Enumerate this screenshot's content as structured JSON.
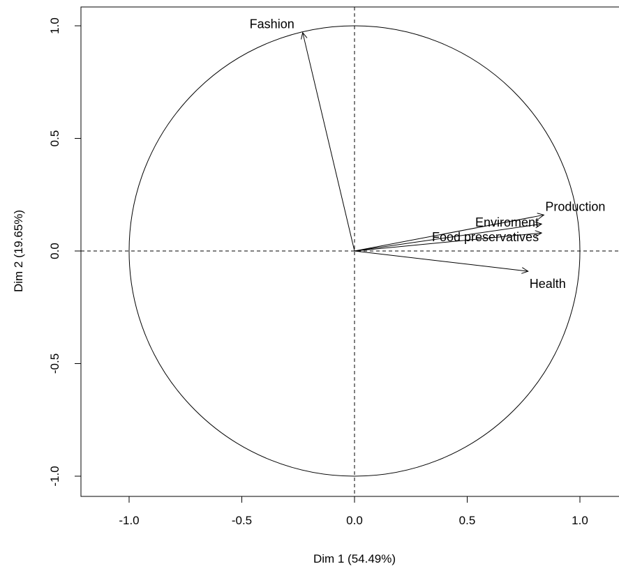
{
  "chart_data": {
    "type": "scatter",
    "xlabel": "Dim 1 (54.49%)",
    "ylabel": "Dim 2 (19.65%)",
    "xlim": [
      -1.2,
      1.2
    ],
    "ylim": [
      -1.08,
      1.08
    ],
    "xticks": [
      -1.0,
      -0.5,
      0.0,
      0.5,
      1.0
    ],
    "xtick_labels": [
      "-1.0",
      "-0.5",
      "0.0",
      "0.5",
      "1.0"
    ],
    "yticks": [
      -1.0,
      -0.5,
      0.0,
      0.5,
      1.0
    ],
    "ytick_labels": [
      "-1.0",
      "-0.5",
      "0.0",
      "0.5",
      "1.0"
    ],
    "unit_circle": true,
    "reference_lines": {
      "x": 0,
      "y": 0,
      "style": "dashed"
    },
    "grid": false,
    "variables": [
      {
        "name": "Fashion",
        "x": -0.23,
        "y": 0.97
      },
      {
        "name": "Production",
        "x": 0.84,
        "y": 0.16
      },
      {
        "name": "Enviroment",
        "x": 0.83,
        "y": 0.12
      },
      {
        "name": "Food preservatives",
        "x": 0.83,
        "y": 0.08
      },
      {
        "name": "Health",
        "x": 0.77,
        "y": -0.09
      }
    ]
  }
}
